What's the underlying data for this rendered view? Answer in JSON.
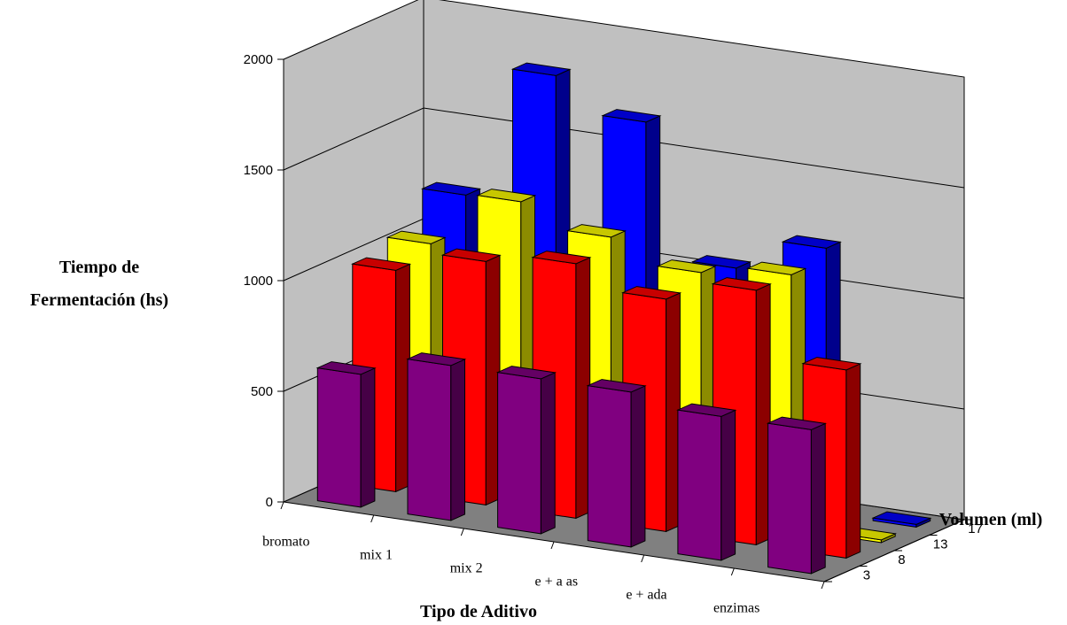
{
  "chart_data": {
    "type": "bar",
    "variant": "3d-column",
    "categories": [
      "bromato",
      "mix 1",
      "mix 2",
      "e + a as",
      "e + ada",
      "enzimas"
    ],
    "depth_categories": [
      "3",
      "8",
      "13",
      "17"
    ],
    "series": [
      {
        "name": "3",
        "color": "#800080",
        "values": [
          600,
          700,
          700,
          700,
          650,
          650
        ]
      },
      {
        "name": "8",
        "color": "#ff0000",
        "values": [
          1000,
          1100,
          1150,
          1050,
          1150,
          850
        ]
      },
      {
        "name": "13",
        "color": "#ffff00",
        "values": [
          1050,
          1300,
          1200,
          1100,
          1150,
          0
        ]
      },
      {
        "name": "17",
        "color": "#0000ff",
        "values": [
          1200,
          1800,
          1650,
          1050,
          1200,
          0
        ]
      }
    ],
    "yticks": [
      0,
      500,
      1000,
      1500,
      2000
    ],
    "ylim": [
      0,
      2000
    ],
    "xlabel": "Tipo de Aditivo",
    "ylabel": "Tiempo de Fermentación (hs)",
    "ylabel_lines": [
      "Tiempo de",
      "Fermentación (hs)"
    ],
    "zlabel": "Volumen (ml)",
    "grid": true,
    "legend": "none"
  }
}
